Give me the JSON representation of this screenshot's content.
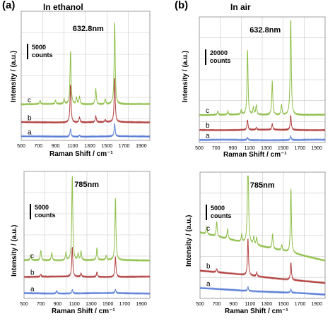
{
  "figure": {
    "panel_a_label": "(a)",
    "panel_a_condition": "In ethanol",
    "panel_b_label": "(b)",
    "panel_b_condition": "In air"
  },
  "colors": {
    "a": "#5b7fd6",
    "b": "#b24040",
    "c": "#8fbf4a",
    "grid": "#c8c8c8"
  },
  "chart_data": [
    {
      "type": "line",
      "panel": "a-top",
      "title": "632.8nm",
      "xlabel": "Raman Shift / cm⁻¹",
      "ylabel": "Intensity / (a.u.)",
      "xlim": [
        500,
        2000
      ],
      "xticks": [
        "500",
        "600",
        "700",
        "800",
        "900",
        "1000",
        "1100",
        "1200",
        "1300",
        "1400",
        "1500",
        "1600",
        "1700",
        "1800",
        "1900",
        "2000"
      ],
      "scale_bar": "5000\ncounts",
      "grid": true,
      "series": [
        {
          "name": "a",
          "offset": 0.03,
          "peaks": [
            [
              1075,
              0.06
            ],
            [
              1590,
              0.1
            ],
            [
              1180,
              0.01
            ]
          ]
        },
        {
          "name": "b",
          "offset": 0.14,
          "peaks": [
            [
              1075,
              0.3
            ],
            [
              1590,
              0.35
            ],
            [
              1180,
              0.04
            ],
            [
              1370,
              0.05
            ],
            [
              1480,
              0.02
            ]
          ]
        },
        {
          "name": "c",
          "offset": 0.28,
          "peaks": [
            [
              1075,
              0.42
            ],
            [
              1590,
              0.65
            ],
            [
              1145,
              0.05
            ],
            [
              1180,
              0.06
            ],
            [
              1370,
              0.12
            ],
            [
              1480,
              0.04
            ],
            [
              1000,
              0.04
            ],
            [
              720,
              0.03
            ],
            [
              900,
              0.03
            ]
          ]
        }
      ]
    },
    {
      "type": "line",
      "panel": "b-top",
      "title": "632.8nm",
      "xlabel": "Raman Shift / cm⁻¹",
      "ylabel": "Intensity / (a.u.)",
      "xlim": [
        500,
        2000
      ],
      "xticks": [
        "500",
        "600",
        "700",
        "800",
        "900",
        "1000",
        "1100",
        "1200",
        "1300",
        "1400",
        "1500",
        "1600",
        "1700",
        "1800",
        "1900",
        "2000"
      ],
      "scale_bar": "20000\ncounts",
      "grid": true,
      "series": [
        {
          "name": "a",
          "offset": 0.02,
          "peaks": [
            [
              1075,
              0.02
            ],
            [
              1590,
              0.03
            ]
          ]
        },
        {
          "name": "b",
          "offset": 0.1,
          "peaks": [
            [
              1075,
              0.08
            ],
            [
              1590,
              0.12
            ],
            [
              1370,
              0.05
            ],
            [
              1180,
              0.02
            ]
          ]
        },
        {
          "name": "c",
          "offset": 0.22,
          "peaks": [
            [
              1075,
              0.52
            ],
            [
              1590,
              0.82
            ],
            [
              1145,
              0.06
            ],
            [
              1180,
              0.08
            ],
            [
              1370,
              0.27
            ],
            [
              1480,
              0.08
            ],
            [
              1000,
              0.04
            ],
            [
              720,
              0.03
            ],
            [
              840,
              0.03
            ]
          ]
        }
      ]
    },
    {
      "type": "line",
      "panel": "a-bottom",
      "title": "785nm",
      "xlabel": "Raman Shift / cm⁻¹",
      "ylabel": "Intensity / (a.u.)",
      "xlim": [
        500,
        2000
      ],
      "xticks": [
        "500",
        "600",
        "700",
        "800",
        "900",
        "1000",
        "1100",
        "1200",
        "1300",
        "1400",
        "1500",
        "1600",
        "1700",
        "1800",
        "1900",
        "2000"
      ],
      "scale_bar": "5000\ncounts",
      "grid": true,
      "series": [
        {
          "name": "a",
          "offset": 0.04,
          "peaks": [
            [
              1075,
              0.03
            ],
            [
              1590,
              0.03
            ],
            [
              890,
              0.02
            ]
          ]
        },
        {
          "name": "b",
          "offset": 0.17,
          "peaks": [
            [
              1075,
              0.24
            ],
            [
              1590,
              0.16
            ],
            [
              1180,
              0.03
            ],
            [
              1370,
              0.04
            ],
            [
              700,
              0.02
            ]
          ]
        },
        {
          "name": "c",
          "offset": 0.3,
          "peaks": [
            [
              1075,
              0.68
            ],
            [
              1590,
              0.5
            ],
            [
              1145,
              0.05
            ],
            [
              1180,
              0.07
            ],
            [
              1370,
              0.1
            ],
            [
              1480,
              0.04
            ],
            [
              1000,
              0.06
            ],
            [
              700,
              0.08
            ],
            [
              830,
              0.06
            ],
            [
              580,
              0.04
            ]
          ]
        }
      ]
    },
    {
      "type": "line",
      "panel": "b-bottom",
      "title": "785nm",
      "xlabel": "Raman Shift / cm⁻¹",
      "ylabel": "Intensity / (a.u.)",
      "xlim": [
        500,
        2000
      ],
      "xticks": [
        "500",
        "600",
        "700",
        "800",
        "900",
        "1000",
        "1100",
        "1200",
        "1300",
        "1400",
        "1500",
        "1600",
        "1700",
        "1800",
        "1900",
        "2000"
      ],
      "scale_bar": "5000\ncounts",
      "grid": true,
      "series": [
        {
          "name": "a",
          "offset": 0.03,
          "slope": 0.05,
          "peaks": [
            [
              1075,
              0.03
            ],
            [
              1590,
              0.03
            ]
          ]
        },
        {
          "name": "b",
          "offset": 0.12,
          "slope": 0.1,
          "peaks": [
            [
              1075,
              0.3
            ],
            [
              1590,
              0.14
            ],
            [
              1180,
              0.03
            ],
            [
              700,
              0.03
            ]
          ]
        },
        {
          "name": "c",
          "offset": 0.3,
          "slope": 0.22,
          "peaks": [
            [
              1075,
              0.82
            ],
            [
              1590,
              0.52
            ],
            [
              1145,
              0.06
            ],
            [
              1180,
              0.06
            ],
            [
              1370,
              0.12
            ],
            [
              1480,
              0.05
            ],
            [
              1000,
              0.06
            ],
            [
              700,
              0.12
            ],
            [
              830,
              0.08
            ],
            [
              580,
              0.06
            ]
          ]
        }
      ]
    }
  ]
}
